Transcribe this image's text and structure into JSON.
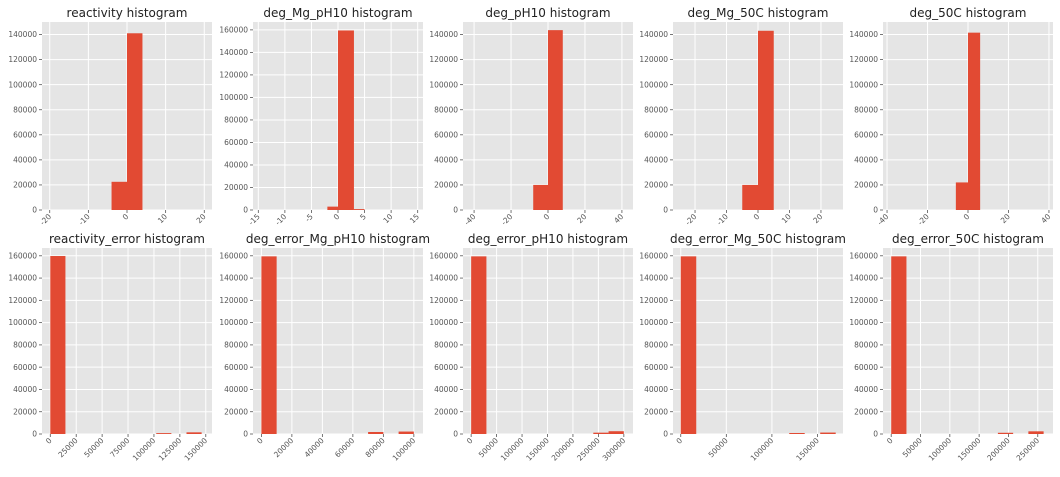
{
  "colors": {
    "bar": "#E24A33",
    "plot_background": "#E5E5E5",
    "grid": "#FFFFFF",
    "tick_text": "#555555"
  },
  "chart_data": [
    {
      "type": "bar",
      "title": "reactivity histogram",
      "grid": true,
      "xlim": [
        -22,
        22
      ],
      "ylim": [
        0,
        150000
      ],
      "xticks": [
        -20,
        -10,
        0,
        10,
        20
      ],
      "xtick_labels": [
        "-20",
        "-10",
        "0",
        "10",
        "20"
      ],
      "yticks": [
        0,
        20000,
        40000,
        60000,
        80000,
        100000,
        120000,
        140000
      ],
      "ytick_labels": [
        "0",
        "20000",
        "40000",
        "60000",
        "80000",
        "100000",
        "120000",
        "140000"
      ],
      "bins": [
        {
          "x0": -4,
          "x1": 0,
          "count": 22500
        },
        {
          "x0": 0,
          "x1": 4,
          "count": 141000
        }
      ]
    },
    {
      "type": "bar",
      "title": "deg_Mg_pH10 histogram",
      "grid": true,
      "xlim": [
        -16,
        16
      ],
      "ylim": [
        0,
        167000
      ],
      "xticks": [
        -15,
        -10,
        -5,
        0,
        5,
        10,
        15
      ],
      "xtick_labels": [
        "-15",
        "-10",
        "-5",
        "0",
        "5",
        "10",
        "15"
      ],
      "yticks": [
        0,
        20000,
        40000,
        60000,
        80000,
        100000,
        120000,
        140000,
        160000
      ],
      "ytick_labels": [
        "0",
        "20000",
        "40000",
        "60000",
        "80000",
        "100000",
        "120000",
        "140000",
        "160000"
      ],
      "bins": [
        {
          "x0": -2,
          "x1": 0,
          "count": 3000
        },
        {
          "x0": 0,
          "x1": 3,
          "count": 159500
        },
        {
          "x0": 3,
          "x1": 5,
          "count": 800
        }
      ]
    },
    {
      "type": "bar",
      "title": "deg_pH10 histogram",
      "grid": true,
      "xlim": [
        -46,
        46
      ],
      "ylim": [
        0,
        150000
      ],
      "xticks": [
        -40,
        -20,
        0,
        20,
        40
      ],
      "xtick_labels": [
        "-40",
        "-20",
        "0",
        "20",
        "40"
      ],
      "yticks": [
        0,
        20000,
        40000,
        60000,
        80000,
        100000,
        120000,
        140000
      ],
      "ytick_labels": [
        "0",
        "20000",
        "40000",
        "60000",
        "80000",
        "100000",
        "120000",
        "140000"
      ],
      "bins": [
        {
          "x0": -8,
          "x1": 0,
          "count": 20000
        },
        {
          "x0": 0,
          "x1": 8,
          "count": 143500
        }
      ]
    },
    {
      "type": "bar",
      "title": "deg_Mg_50C histogram",
      "grid": true,
      "xlim": [
        -27,
        27
      ],
      "ylim": [
        0,
        150000
      ],
      "xticks": [
        -20,
        -10,
        0,
        10,
        20
      ],
      "xtick_labels": [
        "-20",
        "-10",
        "0",
        "10",
        "20"
      ],
      "yticks": [
        0,
        20000,
        40000,
        60000,
        80000,
        100000,
        120000,
        140000
      ],
      "ytick_labels": [
        "0",
        "20000",
        "40000",
        "60000",
        "80000",
        "100000",
        "120000",
        "140000"
      ],
      "bins": [
        {
          "x0": -5,
          "x1": 0,
          "count": 20000
        },
        {
          "x0": 0,
          "x1": 5,
          "count": 143000
        }
      ]
    },
    {
      "type": "bar",
      "title": "deg_50C histogram",
      "grid": true,
      "xlim": [
        -42,
        42
      ],
      "ylim": [
        0,
        150000
      ],
      "xticks": [
        -40,
        -20,
        0,
        20,
        40
      ],
      "xtick_labels": [
        "-40",
        "-20",
        "0",
        "20",
        "40"
      ],
      "yticks": [
        0,
        20000,
        40000,
        60000,
        80000,
        100000,
        120000,
        140000
      ],
      "ytick_labels": [
        "0",
        "20000",
        "40000",
        "60000",
        "80000",
        "100000",
        "120000",
        "140000"
      ],
      "bins": [
        {
          "x0": -6,
          "x1": 0,
          "count": 22000
        },
        {
          "x0": 0,
          "x1": 6,
          "count": 141500
        }
      ]
    },
    {
      "type": "bar",
      "title": "reactivity_error histogram",
      "grid": true,
      "xlim": [
        -8000,
        156000
      ],
      "ylim": [
        0,
        167000
      ],
      "xticks": [
        0,
        25000,
        50000,
        75000,
        100000,
        125000,
        150000
      ],
      "xtick_labels": [
        "0",
        "25000",
        "50000",
        "75000",
        "100000",
        "125000",
        "150000"
      ],
      "yticks": [
        0,
        20000,
        40000,
        60000,
        80000,
        100000,
        120000,
        140000,
        160000
      ],
      "ytick_labels": [
        "0",
        "20000",
        "40000",
        "60000",
        "80000",
        "100000",
        "120000",
        "140000",
        "160000"
      ],
      "bins": [
        {
          "x0": 0,
          "x1": 14600,
          "count": 159800
        },
        {
          "x0": 102200,
          "x1": 116800,
          "count": 800
        },
        {
          "x0": 131400,
          "x1": 146000,
          "count": 1500
        }
      ]
    },
    {
      "type": "bar",
      "title": "deg_error_Mg_pH10 histogram",
      "grid": true,
      "xlim": [
        -5500,
        106000
      ],
      "ylim": [
        0,
        167000
      ],
      "xticks": [
        0,
        20000,
        40000,
        60000,
        80000,
        100000
      ],
      "xtick_labels": [
        "0",
        "20000",
        "40000",
        "60000",
        "80000",
        "100000"
      ],
      "yticks": [
        0,
        20000,
        40000,
        60000,
        80000,
        100000,
        120000,
        140000,
        160000
      ],
      "ytick_labels": [
        "0",
        "20000",
        "40000",
        "60000",
        "80000",
        "100000",
        "120000",
        "140000",
        "160000"
      ],
      "bins": [
        {
          "x0": 0,
          "x1": 10000,
          "count": 159500
        },
        {
          "x0": 70000,
          "x1": 80000,
          "count": 1800
        },
        {
          "x0": 90000,
          "x1": 100000,
          "count": 2200
        }
      ]
    },
    {
      "type": "bar",
      "title": "deg_error_pH10 histogram",
      "grid": true,
      "xlim": [
        -16000,
        318000
      ],
      "ylim": [
        0,
        167000
      ],
      "xticks": [
        0,
        50000,
        100000,
        150000,
        200000,
        250000,
        300000
      ],
      "xtick_labels": [
        "0",
        "50000",
        "100000",
        "150000",
        "200000",
        "250000",
        "300000"
      ],
      "yticks": [
        0,
        20000,
        40000,
        60000,
        80000,
        100000,
        120000,
        140000,
        160000
      ],
      "ytick_labels": [
        "0",
        "20000",
        "40000",
        "60000",
        "80000",
        "100000",
        "120000",
        "140000",
        "160000"
      ],
      "bins": [
        {
          "x0": 0,
          "x1": 30000,
          "count": 159500
        },
        {
          "x0": 240000,
          "x1": 270000,
          "count": 1200
        },
        {
          "x0": 270000,
          "x1": 300000,
          "count": 2500
        }
      ]
    },
    {
      "type": "bar",
      "title": "deg_error_Mg_50C histogram",
      "grid": true,
      "xlim": [
        -8500,
        178000
      ],
      "ylim": [
        0,
        167000
      ],
      "xticks": [
        0,
        50000,
        100000,
        150000
      ],
      "xtick_labels": [
        "0",
        "50000",
        "100000",
        "150000"
      ],
      "yticks": [
        0,
        20000,
        40000,
        60000,
        80000,
        100000,
        120000,
        140000,
        160000
      ],
      "ytick_labels": [
        "0",
        "20000",
        "40000",
        "60000",
        "80000",
        "100000",
        "120000",
        "140000",
        "160000"
      ],
      "bins": [
        {
          "x0": 0,
          "x1": 17000,
          "count": 159500
        },
        {
          "x0": 119000,
          "x1": 136000,
          "count": 900
        },
        {
          "x0": 153000,
          "x1": 170000,
          "count": 1300
        }
      ]
    },
    {
      "type": "bar",
      "title": "deg_error_50C histogram",
      "grid": true,
      "xlim": [
        -14000,
        276000
      ],
      "ylim": [
        0,
        167000
      ],
      "xticks": [
        0,
        50000,
        100000,
        150000,
        200000,
        250000
      ],
      "xtick_labels": [
        "0",
        "50000",
        "100000",
        "150000",
        "200000",
        "250000"
      ],
      "yticks": [
        0,
        20000,
        40000,
        60000,
        80000,
        100000,
        120000,
        140000,
        160000
      ],
      "ytick_labels": [
        "0",
        "20000",
        "40000",
        "60000",
        "80000",
        "100000",
        "120000",
        "140000",
        "160000"
      ],
      "bins": [
        {
          "x0": 0,
          "x1": 26000,
          "count": 159500
        },
        {
          "x0": 182000,
          "x1": 208000,
          "count": 1100
        },
        {
          "x0": 234000,
          "x1": 260000,
          "count": 2400
        }
      ]
    }
  ]
}
